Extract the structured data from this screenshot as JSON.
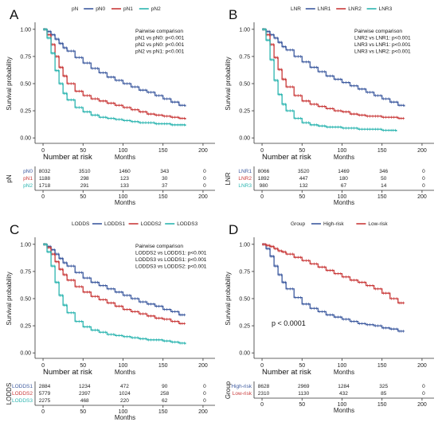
{
  "chart_data": [
    {
      "type": "line",
      "panel_label": "A",
      "legend_title": "pN",
      "xlabel": "Months",
      "ylabel": "Survival probability",
      "xlim": [
        -10,
        215
      ],
      "ylim": [
        -0.05,
        1.05
      ],
      "xticks": [
        "0",
        "50",
        "100",
        "150",
        "200"
      ],
      "yticks": [
        "0.00",
        "0.25",
        "0.50",
        "0.75",
        "1.00"
      ],
      "annotation_lines": [
        "Pairwise comparison",
        "pN1 vs pN0: p<0.001",
        "pN2 vs pN0: p<0.001",
        "pN2 vs pN1: p<0.001"
      ],
      "series": [
        {
          "name": "pN0",
          "color": "#3d5a9f",
          "x": [
            0,
            5,
            10,
            15,
            20,
            25,
            30,
            40,
            50,
            60,
            70,
            80,
            90,
            100,
            110,
            120,
            130,
            140,
            150,
            160,
            170,
            178
          ],
          "y": [
            1.0,
            0.98,
            0.95,
            0.91,
            0.87,
            0.83,
            0.8,
            0.74,
            0.69,
            0.64,
            0.6,
            0.56,
            0.53,
            0.5,
            0.47,
            0.44,
            0.42,
            0.39,
            0.36,
            0.33,
            0.3,
            0.29
          ]
        },
        {
          "name": "pN1",
          "color": "#c93a3a",
          "x": [
            0,
            5,
            10,
            15,
            20,
            25,
            30,
            40,
            50,
            60,
            70,
            80,
            90,
            100,
            110,
            120,
            130,
            140,
            150,
            160,
            170,
            178
          ],
          "y": [
            1.0,
            0.95,
            0.86,
            0.75,
            0.65,
            0.57,
            0.5,
            0.43,
            0.39,
            0.36,
            0.34,
            0.32,
            0.3,
            0.28,
            0.26,
            0.24,
            0.22,
            0.21,
            0.2,
            0.19,
            0.18,
            0.17
          ]
        },
        {
          "name": "pN2",
          "color": "#2cb5b0",
          "x": [
            0,
            5,
            10,
            15,
            20,
            25,
            30,
            40,
            50,
            60,
            70,
            80,
            90,
            100,
            110,
            120,
            130,
            140,
            150,
            160,
            170,
            178
          ],
          "y": [
            1.0,
            0.92,
            0.78,
            0.62,
            0.5,
            0.41,
            0.35,
            0.28,
            0.24,
            0.21,
            0.19,
            0.18,
            0.17,
            0.16,
            0.15,
            0.14,
            0.14,
            0.13,
            0.13,
            0.12,
            0.12,
            0.11
          ]
        }
      ],
      "risk_table": {
        "title": "Number at risk",
        "ylabel": "pN",
        "x": [
          "0",
          "50",
          "100",
          "150",
          "200"
        ],
        "rows": [
          {
            "label": "pN0",
            "color": "#3d5a9f",
            "values": [
              "8032",
              "3510",
              "1460",
              "343",
              "0"
            ]
          },
          {
            "label": "pN1",
            "color": "#c93a3a",
            "values": [
              "1188",
              "298",
              "123",
              "30",
              "0"
            ]
          },
          {
            "label": "pN2",
            "color": "#2cb5b0",
            "values": [
              "1718",
              "291",
              "133",
              "37",
              "0"
            ]
          }
        ],
        "xticks": [
          "0",
          "50",
          "100",
          "150",
          "200"
        ],
        "xlabel": "Months"
      }
    },
    {
      "type": "line",
      "panel_label": "B",
      "legend_title": "LNR",
      "xlabel": "Months",
      "ylabel": "Survival probability",
      "xlim": [
        -10,
        215
      ],
      "ylim": [
        -0.05,
        1.05
      ],
      "xticks": [
        "0",
        "50",
        "100",
        "150",
        "200"
      ],
      "yticks": [
        "0.00",
        "0.25",
        "0.50",
        "0.75",
        "1.00"
      ],
      "annotation_lines": [
        "Pairwise comparison",
        "LNR2 vs LNR1: p<0.001",
        "LNR3 vs LNR1: p<0.001",
        "LNR3 vs LNR2: p<0.001"
      ],
      "series": [
        {
          "name": "LNR1",
          "color": "#3d5a9f",
          "x": [
            0,
            5,
            10,
            15,
            20,
            25,
            30,
            40,
            50,
            60,
            70,
            80,
            90,
            100,
            110,
            120,
            130,
            140,
            150,
            160,
            170,
            178
          ],
          "y": [
            1.0,
            0.98,
            0.95,
            0.92,
            0.88,
            0.84,
            0.81,
            0.75,
            0.7,
            0.65,
            0.61,
            0.57,
            0.54,
            0.51,
            0.48,
            0.45,
            0.42,
            0.39,
            0.36,
            0.33,
            0.3,
            0.29
          ]
        },
        {
          "name": "LNR2",
          "color": "#c93a3a",
          "x": [
            0,
            5,
            10,
            15,
            20,
            25,
            30,
            40,
            50,
            60,
            70,
            80,
            90,
            100,
            110,
            120,
            130,
            140,
            150,
            160,
            170,
            178
          ],
          "y": [
            1.0,
            0.95,
            0.86,
            0.74,
            0.63,
            0.54,
            0.47,
            0.39,
            0.34,
            0.31,
            0.29,
            0.27,
            0.25,
            0.24,
            0.22,
            0.21,
            0.2,
            0.2,
            0.19,
            0.19,
            0.18,
            0.18
          ]
        },
        {
          "name": "LNR3",
          "color": "#2cb5b0",
          "x": [
            0,
            5,
            10,
            15,
            20,
            25,
            30,
            40,
            50,
            60,
            70,
            80,
            90,
            100,
            110,
            120,
            130,
            140,
            150,
            160,
            168
          ],
          "y": [
            1.0,
            0.9,
            0.72,
            0.53,
            0.4,
            0.31,
            0.25,
            0.18,
            0.14,
            0.12,
            0.11,
            0.1,
            0.1,
            0.09,
            0.09,
            0.08,
            0.08,
            0.08,
            0.07,
            0.07,
            0.06
          ]
        }
      ],
      "risk_table": {
        "title": "Number at risk",
        "ylabel": "LNR",
        "rows": [
          {
            "label": "LNR1",
            "color": "#3d5a9f",
            "values": [
              "8066",
              "3520",
              "1469",
              "346",
              "0"
            ]
          },
          {
            "label": "LNR2",
            "color": "#c93a3a",
            "values": [
              "1892",
              "447",
              "180",
              "50",
              "0"
            ]
          },
          {
            "label": "LNR3",
            "color": "#2cb5b0",
            "values": [
              "980",
              "132",
              "67",
              "14",
              "0"
            ]
          }
        ],
        "xticks": [
          "0",
          "50",
          "100",
          "150",
          "200"
        ],
        "xlabel": "Months"
      }
    },
    {
      "type": "line",
      "panel_label": "C",
      "legend_title": "LODDS",
      "xlabel": "Months",
      "ylabel": "Survival probability",
      "xlim": [
        -10,
        215
      ],
      "ylim": [
        -0.05,
        1.05
      ],
      "xticks": [
        "0",
        "50",
        "100",
        "150",
        "200"
      ],
      "yticks": [
        "0.00",
        "0.25",
        "0.50",
        "0.75",
        "1.00"
      ],
      "annotation_lines": [
        "Pairwise comparison",
        "LODDS2 vs LODDS1: p<0.001",
        "LODDS3 vs LODDS1: p<0.001",
        "LODDS3 vs LODDS2: p<0.001"
      ],
      "series": [
        {
          "name": "LODDS1",
          "color": "#3d5a9f",
          "x": [
            0,
            5,
            10,
            15,
            20,
            25,
            30,
            40,
            50,
            60,
            70,
            80,
            90,
            100,
            110,
            120,
            130,
            140,
            150,
            160,
            170,
            178
          ],
          "y": [
            1.0,
            0.98,
            0.95,
            0.91,
            0.87,
            0.83,
            0.8,
            0.74,
            0.69,
            0.65,
            0.62,
            0.59,
            0.56,
            0.53,
            0.5,
            0.47,
            0.45,
            0.43,
            0.4,
            0.38,
            0.35,
            0.35
          ]
        },
        {
          "name": "LODDS2",
          "color": "#c93a3a",
          "x": [
            0,
            5,
            10,
            15,
            20,
            25,
            30,
            40,
            50,
            60,
            70,
            80,
            90,
            100,
            110,
            120,
            130,
            140,
            150,
            160,
            170,
            178
          ],
          "y": [
            1.0,
            0.97,
            0.91,
            0.84,
            0.77,
            0.72,
            0.67,
            0.61,
            0.56,
            0.52,
            0.49,
            0.46,
            0.43,
            0.4,
            0.38,
            0.36,
            0.34,
            0.32,
            0.31,
            0.29,
            0.27,
            0.27
          ]
        },
        {
          "name": "LODDS3",
          "color": "#2cb5b0",
          "x": [
            0,
            5,
            10,
            15,
            20,
            25,
            30,
            40,
            50,
            60,
            70,
            80,
            90,
            100,
            110,
            120,
            130,
            140,
            150,
            160,
            170,
            178
          ],
          "y": [
            1.0,
            0.93,
            0.8,
            0.65,
            0.53,
            0.44,
            0.37,
            0.29,
            0.24,
            0.21,
            0.19,
            0.17,
            0.16,
            0.15,
            0.14,
            0.13,
            0.12,
            0.12,
            0.11,
            0.1,
            0.09,
            0.08
          ]
        }
      ],
      "risk_table": {
        "title": "Number at risk",
        "ylabel": "LODDS",
        "rows": [
          {
            "label": "LODDS1",
            "color": "#3d5a9f",
            "values": [
              "2884",
              "1234",
              "472",
              "90",
              "0"
            ]
          },
          {
            "label": "LODDS2",
            "color": "#c93a3a",
            "values": [
              "5779",
              "2397",
              "1024",
              "258",
              "0"
            ]
          },
          {
            "label": "LODDS3",
            "color": "#2cb5b0",
            "values": [
              "2275",
              "468",
              "220",
              "62",
              "0"
            ]
          }
        ],
        "xticks": [
          "0",
          "50",
          "100",
          "150",
          "200"
        ],
        "xlabel": "Months"
      }
    },
    {
      "type": "line",
      "panel_label": "D",
      "legend_title": "Group",
      "xlabel": "Months",
      "ylabel": "Survival probability",
      "xlim": [
        -10,
        215
      ],
      "ylim": [
        -0.05,
        1.05
      ],
      "xticks": [
        "0",
        "50",
        "100",
        "150",
        "200"
      ],
      "yticks": [
        "0.00",
        "0.25",
        "0.50",
        "0.75",
        "1.00"
      ],
      "pvalue": "p < 0.0001",
      "series": [
        {
          "name": "High-risk",
          "color": "#3d5a9f",
          "x": [
            0,
            5,
            10,
            15,
            20,
            25,
            30,
            40,
            50,
            60,
            70,
            80,
            90,
            100,
            110,
            120,
            130,
            140,
            150,
            160,
            170,
            178
          ],
          "y": [
            1.0,
            0.96,
            0.89,
            0.8,
            0.72,
            0.65,
            0.59,
            0.51,
            0.45,
            0.41,
            0.38,
            0.35,
            0.33,
            0.31,
            0.29,
            0.27,
            0.26,
            0.25,
            0.23,
            0.22,
            0.2,
            0.2
          ]
        },
        {
          "name": "Low-risk",
          "color": "#c93a3a",
          "x": [
            0,
            5,
            10,
            15,
            20,
            25,
            30,
            40,
            50,
            60,
            70,
            80,
            90,
            100,
            110,
            120,
            130,
            140,
            150,
            160,
            170,
            178
          ],
          "y": [
            1.0,
            0.99,
            0.98,
            0.96,
            0.94,
            0.93,
            0.91,
            0.88,
            0.85,
            0.82,
            0.79,
            0.76,
            0.73,
            0.7,
            0.67,
            0.65,
            0.62,
            0.59,
            0.55,
            0.5,
            0.46,
            0.46
          ]
        }
      ],
      "risk_table": {
        "title": "Number at risk",
        "ylabel": "Group",
        "rows": [
          {
            "label": "High-risk",
            "color": "#3d5a9f",
            "values": [
              "8628",
              "2969",
              "1284",
              "325",
              "0"
            ]
          },
          {
            "label": "Low-risk",
            "color": "#c93a3a",
            "values": [
              "2310",
              "1130",
              "432",
              "85",
              "0"
            ]
          }
        ],
        "xticks": [
          "0",
          "50",
          "100",
          "150",
          "200"
        ],
        "xlabel": "Months"
      }
    }
  ]
}
